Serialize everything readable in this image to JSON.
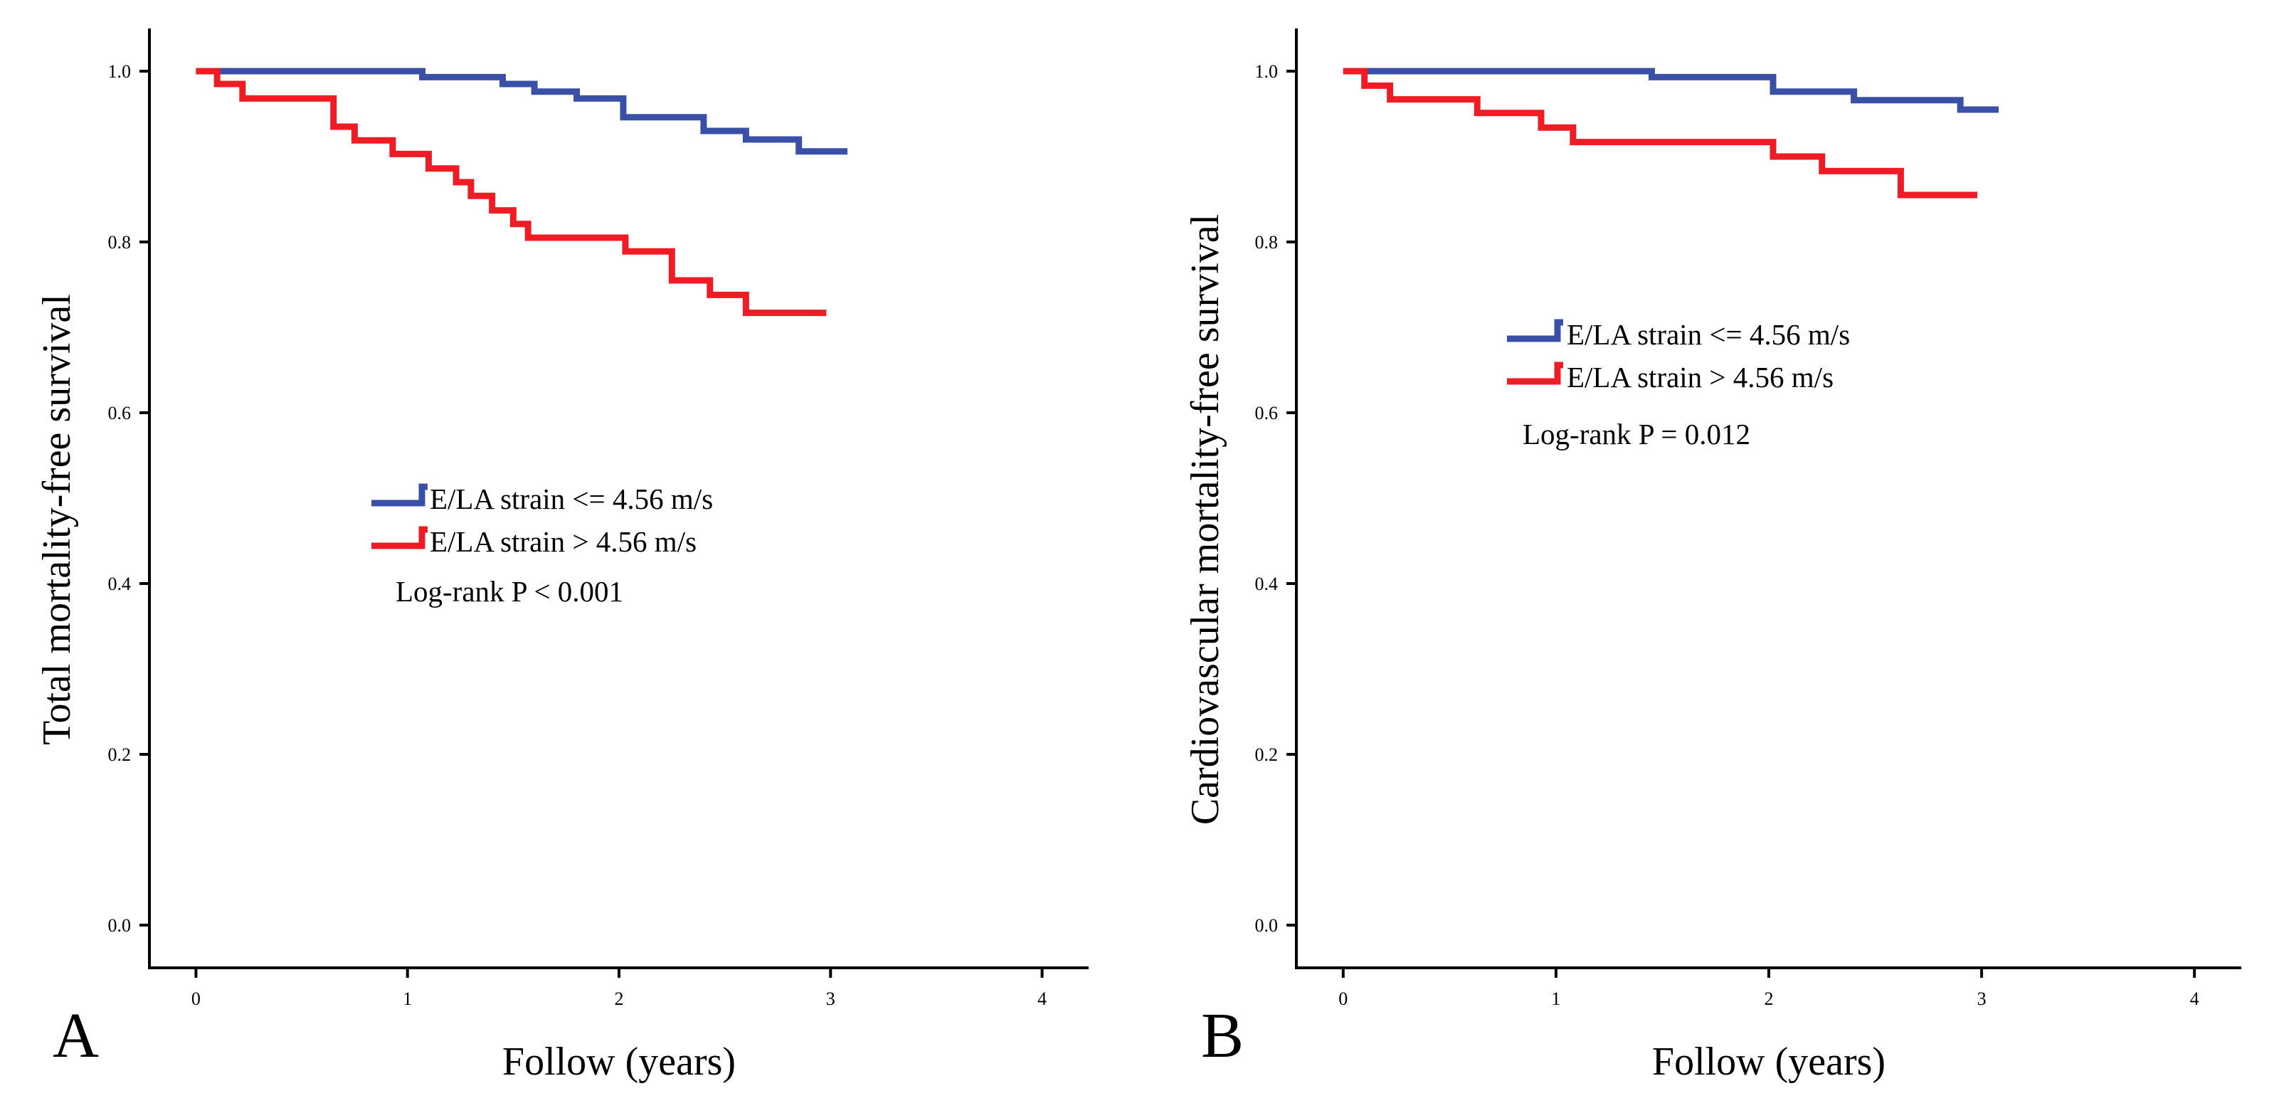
{
  "chart_data": [
    {
      "type": "line",
      "subtype": "kaplan-meier step",
      "panel_label": "A",
      "xlabel": "Follow (years)",
      "ylabel": "Total mortality-free survival",
      "xlim": [
        -0.22,
        4.22
      ],
      "ylim": [
        -0.05,
        1.05
      ],
      "x_ticks": [
        "0",
        "1",
        "2",
        "3",
        "4"
      ],
      "y_ticks": [
        "0.0",
        "0.2",
        "0.4",
        "0.6",
        "0.8",
        "1.0"
      ],
      "series": [
        {
          "name": "E/LA strain <= 4.56 m/s",
          "color": "#3a4fa6",
          "x": [
            0.0,
            1.07,
            1.45,
            1.6,
            1.8,
            2.02,
            2.4,
            2.6,
            2.85,
            3.08
          ],
          "y": [
            1.0,
            0.993,
            0.985,
            0.976,
            0.968,
            0.946,
            0.93,
            0.92,
            0.906,
            0.906
          ]
        },
        {
          "name": "E/LA strain > 4.56 m/s",
          "color": "#ee1c24",
          "x": [
            0.0,
            0.1,
            0.22,
            0.65,
            0.75,
            0.93,
            1.1,
            1.23,
            1.3,
            1.4,
            1.5,
            1.57,
            2.03,
            2.25,
            2.43,
            2.6,
            2.98
          ],
          "y": [
            1.0,
            0.985,
            0.968,
            0.935,
            0.919,
            0.903,
            0.886,
            0.87,
            0.854,
            0.837,
            0.821,
            0.805,
            0.789,
            0.755,
            0.738,
            0.717,
            0.717
          ]
        }
      ],
      "annotation": "Log-rank P < 0.001"
    },
    {
      "type": "line",
      "subtype": "kaplan-meier step",
      "panel_label": "B",
      "xlabel": "Follow (years)",
      "ylabel": "Cardiovascular mortality-free survival",
      "xlim": [
        -0.22,
        4.22
      ],
      "ylim": [
        -0.05,
        1.05
      ],
      "x_ticks": [
        "0",
        "1",
        "2",
        "3",
        "4"
      ],
      "y_ticks": [
        "0.0",
        "0.2",
        "0.4",
        "0.6",
        "0.8",
        "1.0"
      ],
      "series": [
        {
          "name": "E/LA strain <= 4.56 m/s",
          "color": "#3a4fa6",
          "x": [
            0.0,
            1.45,
            2.02,
            2.4,
            2.9,
            3.08
          ],
          "y": [
            1.0,
            0.993,
            0.976,
            0.966,
            0.955,
            0.955
          ]
        },
        {
          "name": "E/LA strain > 4.56 m/s",
          "color": "#ee1c24",
          "x": [
            0.0,
            0.1,
            0.22,
            0.63,
            0.93,
            1.08,
            2.02,
            2.25,
            2.62,
            2.98
          ],
          "y": [
            1.0,
            0.983,
            0.967,
            0.951,
            0.934,
            0.917,
            0.9,
            0.883,
            0.855,
            0.855
          ]
        }
      ],
      "annotation": "Log-rank P = 0.012"
    }
  ]
}
